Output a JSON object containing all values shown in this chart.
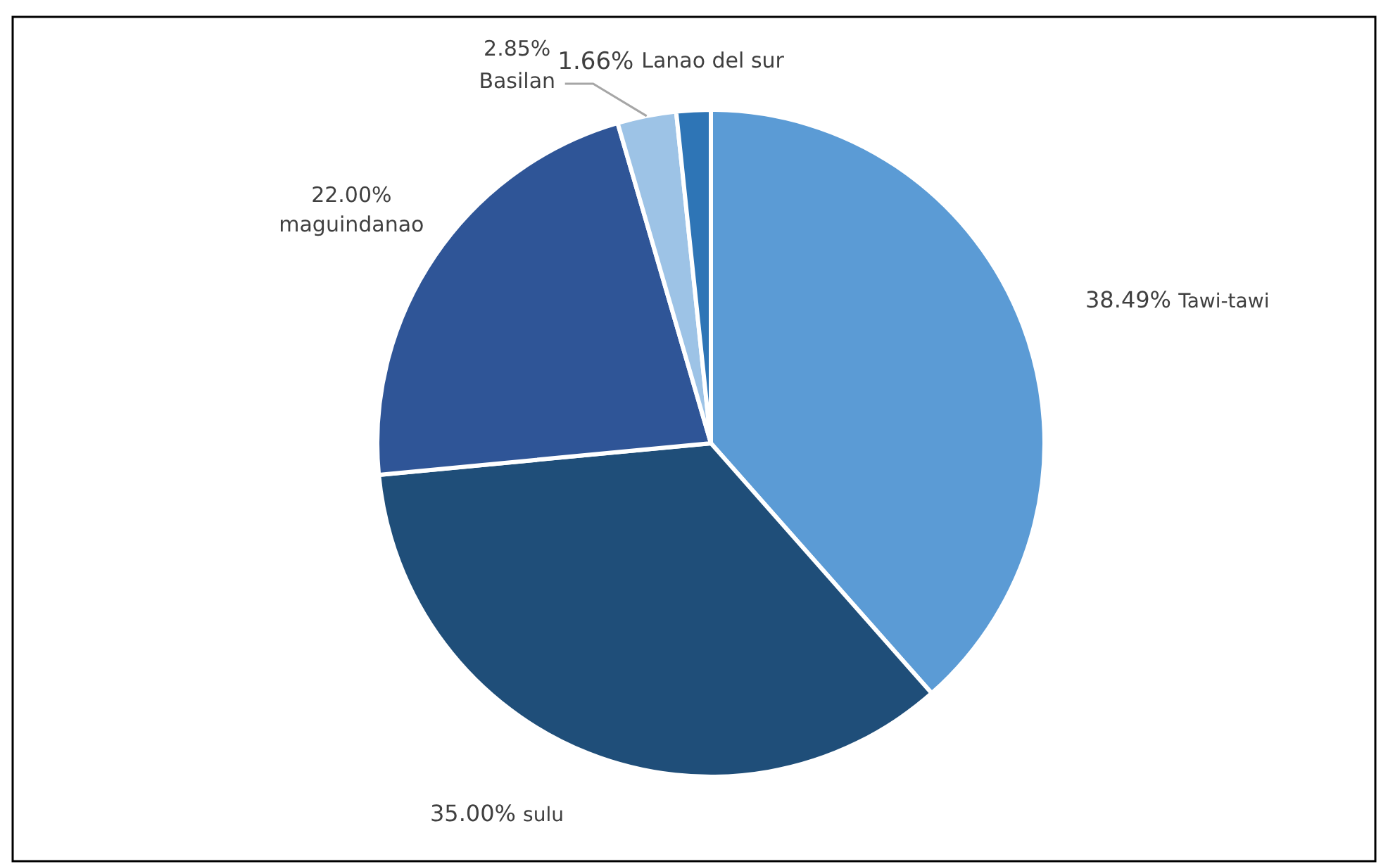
{
  "chart_data": {
    "type": "pie",
    "categories": [
      "Tawi-tawi",
      "sulu",
      "maguindanao",
      "Basilan",
      "Lanao del sur"
    ],
    "values": [
      38.49,
      35.0,
      22.0,
      2.85,
      1.66
    ],
    "colors": [
      "#5b9bd5",
      "#1f4e79",
      "#2f5597",
      "#9dc3e6",
      "#2e75b6"
    ],
    "value_labels": [
      "38.49%",
      "35.00%",
      "22.00%",
      "2.85%",
      "1.66%"
    ]
  }
}
